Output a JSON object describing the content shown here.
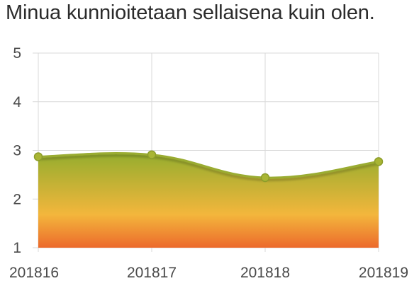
{
  "chart_data": {
    "type": "area",
    "title": "Minua kunnioitetaan sellaisena kuin olen.",
    "categories": [
      "201816",
      "201817",
      "201818",
      "201819"
    ],
    "series": [
      {
        "name": "",
        "values": [
          2.87,
          2.91,
          2.44,
          2.77
        ]
      }
    ],
    "ylim": [
      1,
      5
    ],
    "yticks": [
      1,
      2,
      3,
      4,
      5
    ],
    "xlabel": "",
    "ylabel": "",
    "grid": true,
    "colors": {
      "gradient_top": "#95ad2e",
      "gradient_mid": "#f3b63c",
      "gradient_bottom": "#ec6a2c",
      "line": "#9aac31",
      "point_fill": "#a9b534",
      "point_stroke": "#8c9d2a",
      "grid": "#d9d9d9"
    }
  }
}
